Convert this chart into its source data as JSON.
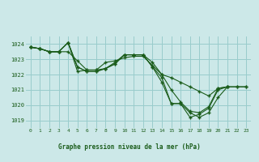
{
  "title": "Graphe pression niveau de la mer (hPa)",
  "background_color": "#cce8e8",
  "grid_color": "#99cccc",
  "line_color": "#1a5c1a",
  "marker_color": "#1a5c1a",
  "xlim": [
    -0.5,
    23.5
  ],
  "ylim": [
    1018.5,
    1024.5
  ],
  "xticks": [
    0,
    1,
    2,
    3,
    4,
    5,
    6,
    7,
    8,
    9,
    10,
    11,
    12,
    13,
    14,
    15,
    16,
    17,
    18,
    19,
    20,
    21,
    22,
    23
  ],
  "yticks": [
    1019,
    1020,
    1021,
    1022,
    1023,
    1024
  ],
  "series_full": [
    {
      "x": [
        0,
        1,
        2,
        3,
        4,
        5,
        6,
        7,
        8,
        9,
        10,
        11,
        12,
        13,
        14,
        15,
        16,
        17,
        18,
        19,
        20,
        21,
        22,
        23
      ],
      "y": [
        1023.8,
        1023.7,
        1023.5,
        1023.5,
        1023.5,
        1022.9,
        1022.3,
        1022.3,
        1022.8,
        1022.9,
        1023.1,
        1023.2,
        1023.2,
        1022.6,
        1022.0,
        1021.8,
        1021.5,
        1021.2,
        1020.9,
        1020.6,
        1021.1,
        1021.2,
        1021.2,
        1021.2
      ]
    },
    {
      "x": [
        0,
        1,
        2,
        3,
        4,
        5,
        6,
        7,
        8,
        9,
        10,
        11,
        12,
        13,
        14,
        15,
        16,
        17,
        18,
        19,
        20,
        21
      ],
      "y": [
        1023.8,
        1023.7,
        1023.5,
        1023.5,
        1024.1,
        1022.2,
        1022.3,
        1022.3,
        1022.4,
        1022.8,
        1023.3,
        1023.3,
        1023.3,
        1022.8,
        1022.0,
        1021.0,
        1020.2,
        1019.6,
        1019.5,
        1019.9,
        1021.1,
        1021.2
      ]
    },
    {
      "x": [
        0,
        1,
        2,
        3,
        4,
        5,
        6,
        7,
        8,
        9,
        10,
        11,
        12,
        13,
        14,
        15,
        16,
        17,
        18,
        19,
        20,
        21
      ],
      "y": [
        1023.8,
        1023.7,
        1023.5,
        1023.5,
        1024.1,
        1022.5,
        1022.2,
        1022.2,
        1022.4,
        1022.7,
        1023.3,
        1023.3,
        1023.3,
        1022.5,
        1021.8,
        1020.1,
        1020.1,
        1019.2,
        1019.4,
        1019.8,
        1021.0,
        1021.2
      ]
    },
    {
      "x": [
        0,
        1,
        2,
        3,
        4,
        5,
        6,
        7,
        8,
        9,
        10,
        11,
        12,
        13,
        14,
        15,
        16,
        17,
        18,
        19,
        20,
        21,
        22,
        23
      ],
      "y": [
        1023.8,
        1023.7,
        1023.5,
        1023.5,
        1024.1,
        1022.5,
        1022.2,
        1022.2,
        1022.4,
        1022.7,
        1023.3,
        1023.3,
        1023.3,
        1022.5,
        1021.5,
        1020.1,
        1020.1,
        1019.5,
        1019.2,
        1019.5,
        1020.5,
        1021.2,
        1021.2,
        1021.2
      ]
    }
  ]
}
